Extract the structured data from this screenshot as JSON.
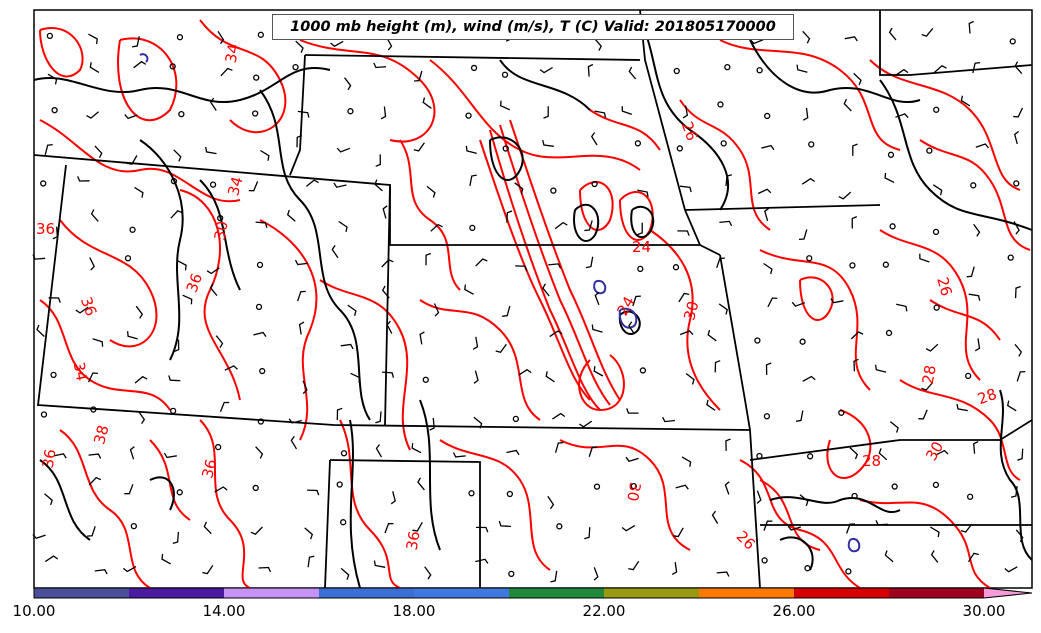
{
  "title": "1000 mb height (m), wind (m/s), T (C) Valid: 201805170000",
  "contour_labels": [
    "34",
    "36",
    "34",
    "30",
    "36",
    "36",
    "34",
    "38",
    "36",
    "36",
    "36",
    "24",
    "30",
    "30",
    "26",
    "26",
    "28",
    "28",
    "30",
    "26",
    "28",
    "24"
  ],
  "colorbar": {
    "tick_labels": [
      "10.00",
      "14.00",
      "18.00",
      "22.00",
      "26.00",
      "30.00"
    ],
    "colors": [
      "#4b4f9a",
      "#4a1ba0",
      "#c792f5",
      "#3b6fd6",
      "#3f79e0",
      "#1f8a3c",
      "#9a9a12",
      "#ff7a00",
      "#d60000",
      "#a00020",
      "#f040a0",
      "#f59bd9"
    ]
  },
  "legend_colors": {
    "temperature_contour": "#ff0000",
    "height_contour": "#000000",
    "cold_contour": "#3030a0",
    "borders": "#000000"
  }
}
